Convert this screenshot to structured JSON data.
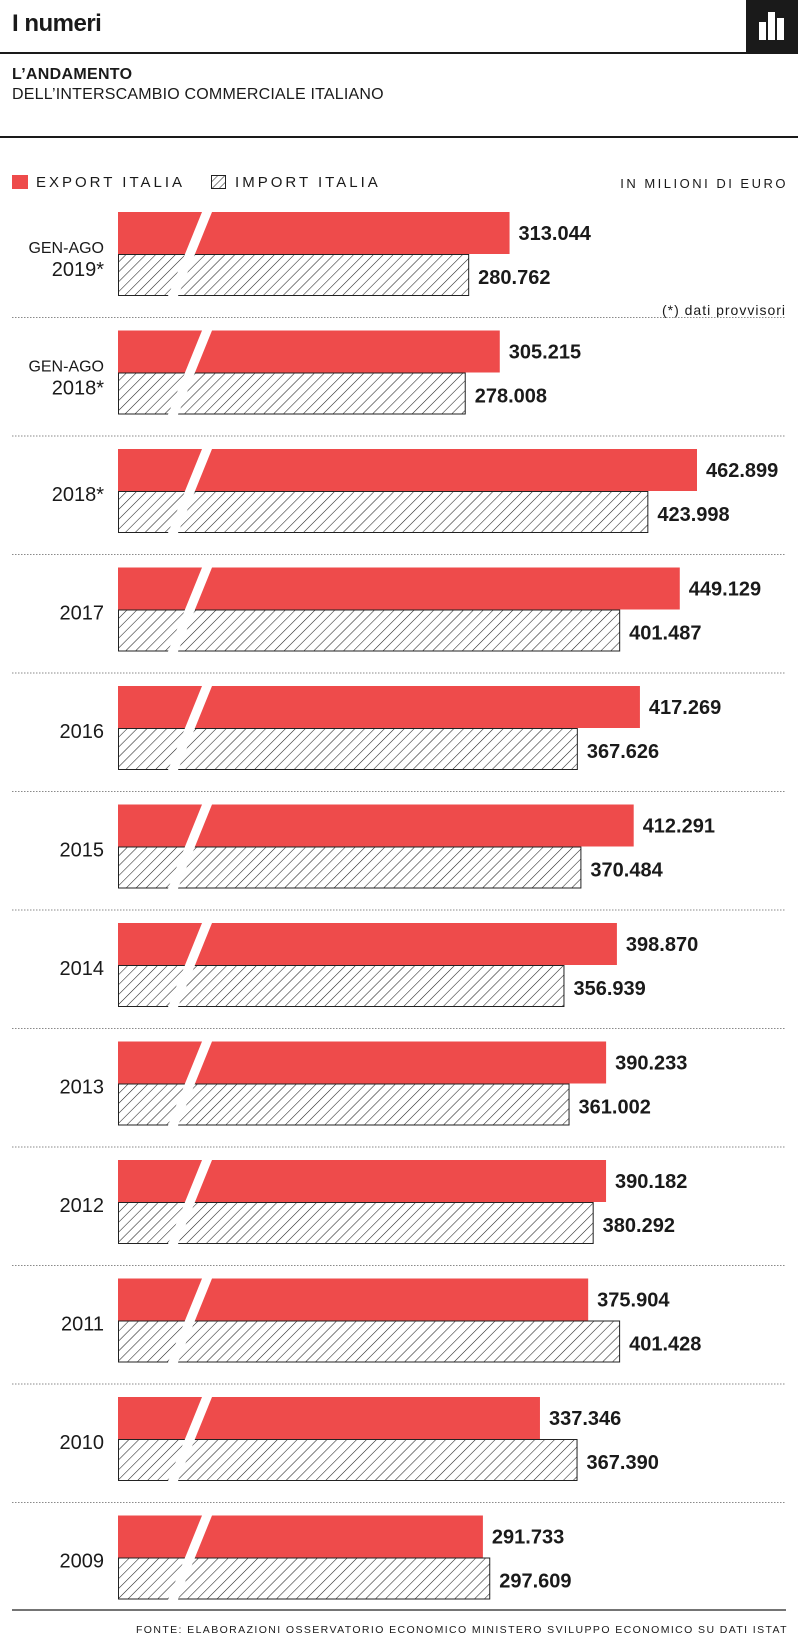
{
  "header": {
    "title": "I numeri",
    "icon": "bar-chart-icon"
  },
  "heading": {
    "title": "L’ANDAMENTO",
    "subtitle": "DELL’INTERSCAMBIO COMMERCIALE ITALIANO"
  },
  "colors": {
    "export": "#ee4b4b",
    "import_stroke": "#222222",
    "import_fill": "#ffffff",
    "text": "#1a1a1a",
    "separator": "#8a8a8a"
  },
  "footer": {
    "source": "FONTE: ELABORAZIONI OSSERVATORIO ECONOMICO MINISTERO SVILUPPO ECONOMICO SU DATI ISTAT"
  },
  "chart_data": {
    "type": "bar",
    "orientation": "horizontal",
    "units": "IN MILIONI DI EURO",
    "note": "(*) dati provvisori",
    "series": [
      {
        "name": "EXPORT ITALIA",
        "values": [
          313044,
          305215,
          462899,
          449129,
          417269,
          412291,
          398870,
          390233,
          390182,
          375904,
          337346,
          291733
        ],
        "labels": [
          "313.044",
          "305.215",
          "462.899",
          "449.129",
          "417.269",
          "412.291",
          "398.870",
          "390.233",
          "390.182",
          "375.904",
          "337.346",
          "291.733"
        ]
      },
      {
        "name": "IMPORT ITALIA",
        "values": [
          280762,
          278008,
          423998,
          401487,
          367626,
          370484,
          356939,
          361002,
          380292,
          401428,
          367390,
          297609
        ],
        "labels": [
          "280.762",
          "278.008",
          "423.998",
          "401.487",
          "367.626",
          "370.484",
          "356.939",
          "361.002",
          "380.292",
          "401.428",
          "367.390",
          "297.609"
        ]
      }
    ],
    "categories": [
      [
        "GEN-AGO",
        "2019*"
      ],
      [
        "GEN-AGO",
        "2018*"
      ],
      [
        "",
        "2018*"
      ],
      [
        "",
        "2017"
      ],
      [
        "",
        "2016"
      ],
      [
        "",
        "2015"
      ],
      [
        "",
        "2014"
      ],
      [
        "",
        "2013"
      ],
      [
        "",
        "2012"
      ],
      [
        "",
        "2011"
      ],
      [
        "",
        "2010"
      ],
      [
        "",
        "2009"
      ]
    ],
    "axis_break": true,
    "grid": false,
    "legend_position": "top-left"
  }
}
